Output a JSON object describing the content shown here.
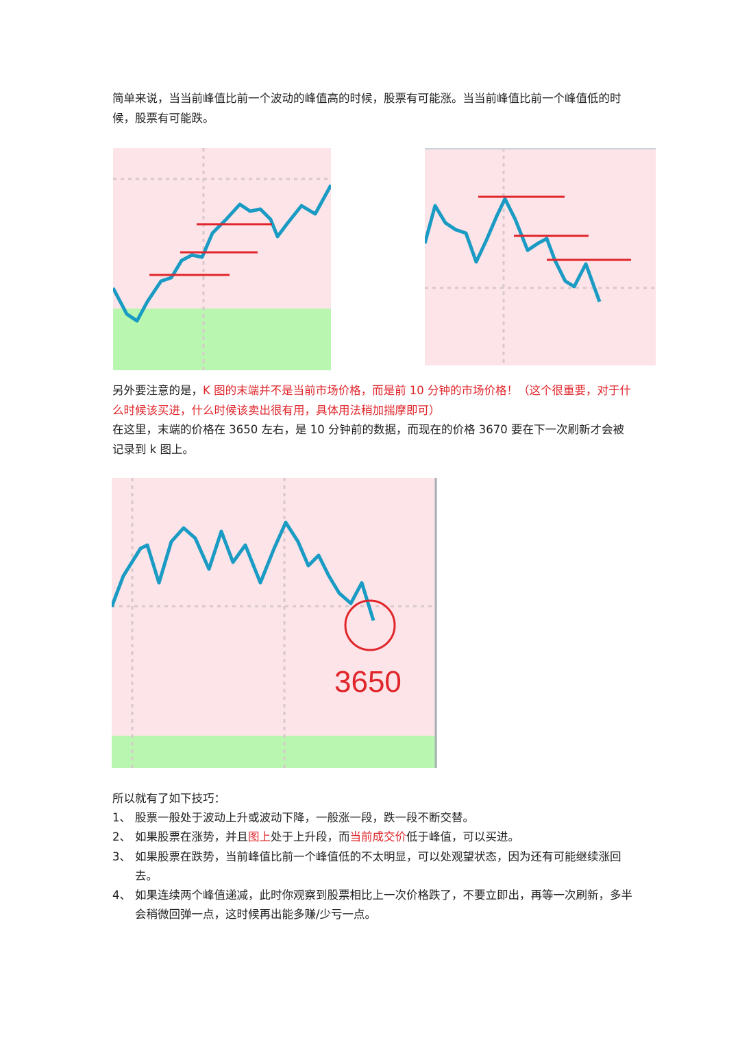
{
  "intro": {
    "text": "简单来说，当当前峰值比前一个波动的峰值高的时候，股票有可能涨。当当前峰值比前一个峰值低的时候，股票有可能跌。"
  },
  "note": {
    "prefix": "另外要注意的是，",
    "highlight": "K 图的末端并不是当前市场价格，而是前 10 分钟的市场价格！（这个很重要，对于什么时候该买进，什么时候该卖出很有用，具体用法稍加揣摩即可）",
    "detail": "在这里，末端的价格在 3650 左右，是 10 分钟前的数据，而现在的价格 3670 要在下一次刷新才会被记录到 k 图上。"
  },
  "figure3": {
    "price_label": "3650"
  },
  "colors": {
    "line": "#1a9bc4",
    "marker": "#e0262b",
    "bg_pink": "#fde4e8",
    "bg_green": "#b9f7b0"
  },
  "tips": {
    "heading": "所以就有了如下技巧：",
    "items": [
      {
        "num": "1、",
        "text": "股票一般处于波动上升或波动下降，一般涨一段，跌一段不断交替。"
      },
      {
        "num": "2、",
        "pre": "如果股票在涨势，并且",
        "red1": "图上",
        "mid": "处于上升段，而",
        "red2": "当前成交价",
        "post": "低于峰值，可以买进。"
      },
      {
        "num": "3、",
        "text": "如果股票在跌势，当前峰值比前一个峰值低的不太明显，可以处观望状态，因为还有可能继续涨回去。"
      },
      {
        "num": "4、",
        "text": "如果连续两个峰值递减，此时你观察到股票相比上一次价格跌了，不要立即出，再等一次刷新，多半会稍微回弹一点，这时候再出能多赚/少亏一点。"
      }
    ]
  }
}
